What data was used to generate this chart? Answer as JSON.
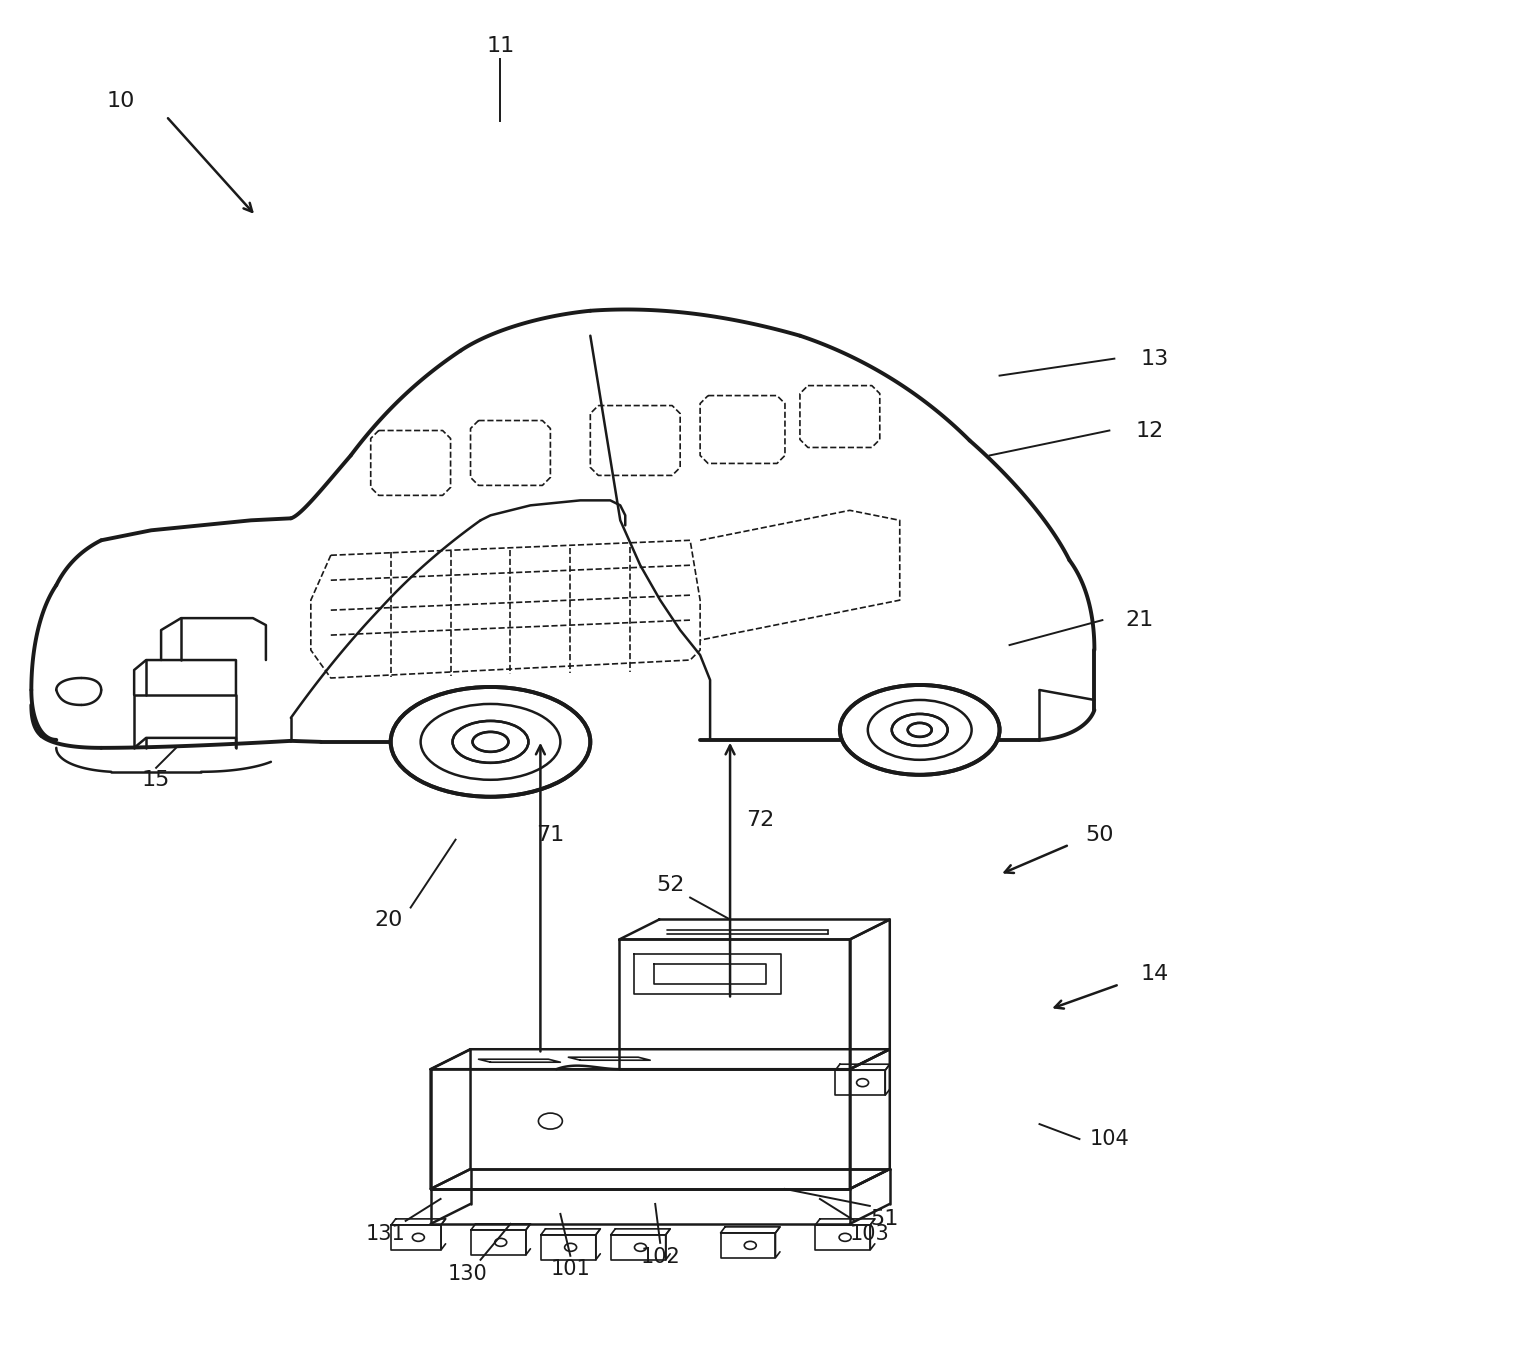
{
  "background_color": "#ffffff",
  "line_color": "#1a1a1a",
  "fig_width": 15.29,
  "fig_height": 13.55,
  "lw_body": 2.8,
  "lw_detail": 1.8,
  "lw_thin": 1.2,
  "font_size": 16
}
